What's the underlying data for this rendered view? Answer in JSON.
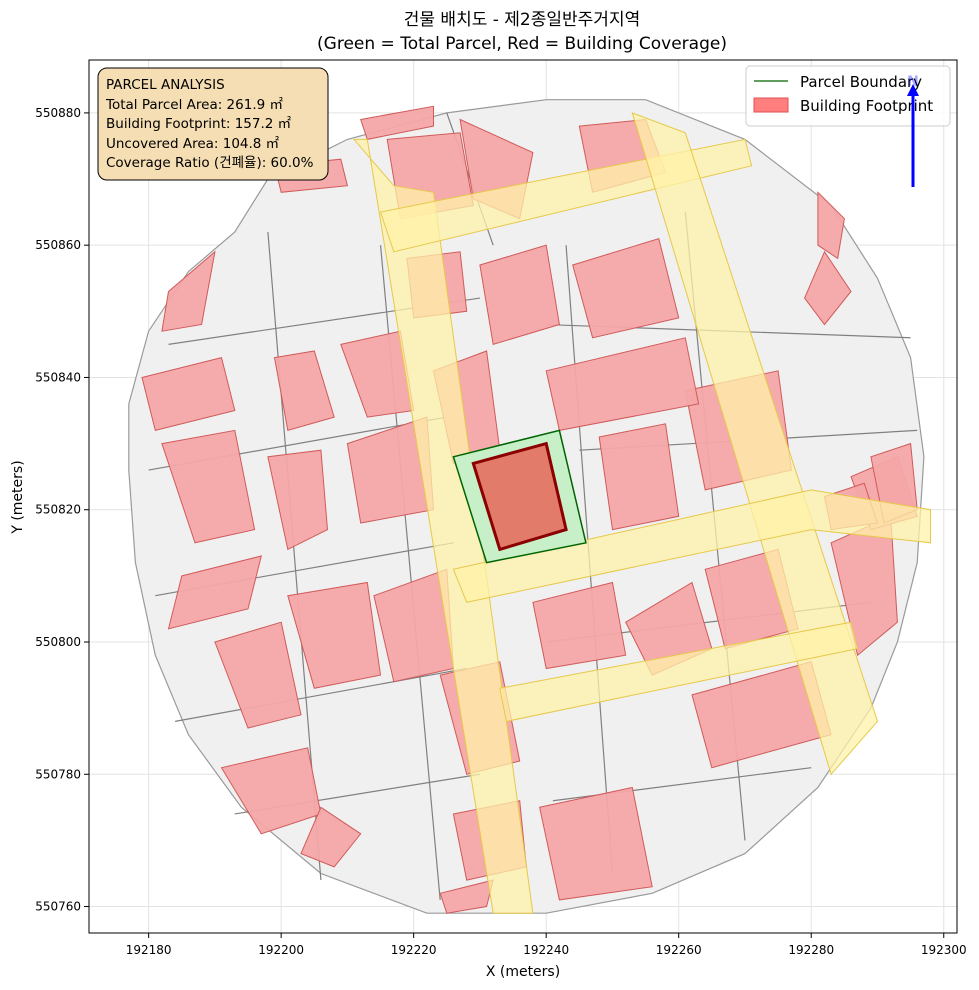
{
  "chart_data": {
    "type": "map",
    "title": "건물 배치도 - 제2종일반주거지역",
    "subtitle": "(Green = Total Parcel, Red = Building Coverage)",
    "xlabel": "X (meters)",
    "ylabel": "Y (meters)",
    "xlim": [
      192171,
      192302
    ],
    "ylim": [
      550756,
      550888
    ],
    "xticks": [
      192180,
      192200,
      192220,
      192240,
      192260,
      192280,
      192300
    ],
    "yticks": [
      550760,
      550780,
      550800,
      550820,
      550840,
      550860,
      550880
    ],
    "grid": true,
    "legend": {
      "placement": "top-right",
      "entries": [
        {
          "label": "Parcel Boundary",
          "kind": "line",
          "color": "#006400"
        },
        {
          "label": "Building Footprint",
          "kind": "patch",
          "color": "#ff7f7f"
        }
      ]
    },
    "north_arrow": {
      "label": "N",
      "color": "#0000ff"
    },
    "annotation": {
      "lines": [
        "PARCEL ANALYSIS",
        "Total Parcel Area: 261.9 ㎡",
        "Building Footprint: 157.2 ㎡",
        "Uncovered Area: 104.8 ㎡",
        "Coverage Ratio (건폐율): 60.0%"
      ]
    },
    "values": {
      "total_parcel_area_m2": 261.9,
      "building_footprint_m2": 157.2,
      "uncovered_area_m2": 104.8,
      "coverage_ratio_pct": 60.0
    },
    "colors": {
      "area_fill": "#f0f0f0",
      "lot_line": "#808080",
      "road_fill": "#fff2a8",
      "road_edge": "#e6c84a",
      "building_fill": "#f4a6a6",
      "building_edge": "#d05a5a",
      "target_parcel_fill": "#c8f0c8",
      "target_parcel_edge": "#006400",
      "target_building_fill": "#e27b6a",
      "target_building_edge": "#8b0000"
    },
    "boundary": [
      [
        192177,
        550826
      ],
      [
        192177,
        550836
      ],
      [
        192180,
        550847
      ],
      [
        192186,
        550856
      ],
      [
        192193,
        550862
      ],
      [
        192198,
        550870
      ],
      [
        192210,
        550876
      ],
      [
        192225,
        550880
      ],
      [
        192240,
        550882
      ],
      [
        192255,
        550882
      ],
      [
        192270,
        550876
      ],
      [
        192283,
        550866
      ],
      [
        192290,
        550855
      ],
      [
        192295,
        550843
      ],
      [
        192297,
        550828
      ],
      [
        192296,
        550812
      ],
      [
        192293,
        550800
      ],
      [
        192289,
        550790
      ],
      [
        192281,
        550778
      ],
      [
        192270,
        550768
      ],
      [
        192256,
        550762
      ],
      [
        192240,
        550759
      ],
      [
        192222,
        550759
      ],
      [
        192206,
        550765
      ],
      [
        192194,
        550775
      ],
      [
        192186,
        550786
      ],
      [
        192181,
        550798
      ],
      [
        192178,
        550812
      ]
    ],
    "roads": [
      [
        [
          192211,
          550876
        ],
        [
          192213,
          550876
        ],
        [
          192232,
          550759
        ],
        [
          192238,
          550759
        ],
        [
          192223,
          550868
        ],
        [
          192217,
          550869
        ]
      ],
      [
        [
          192215,
          550865
        ],
        [
          192270,
          550876
        ],
        [
          192271,
          550872
        ],
        [
          192217,
          550859
        ]
      ],
      [
        [
          192253,
          550880
        ],
        [
          192261,
          550877
        ],
        [
          192290,
          550788
        ],
        [
          192283,
          550780
        ]
      ],
      [
        [
          192226,
          550811
        ],
        [
          192280,
          550823
        ],
        [
          192298,
          550820
        ],
        [
          192298,
          550815
        ],
        [
          192280,
          550817
        ],
        [
          192228,
          550806
        ]
      ],
      [
        [
          192233,
          550793
        ],
        [
          192286,
          550803
        ],
        [
          192287,
          550799
        ],
        [
          192234,
          550788
        ]
      ]
    ],
    "lot_lines": [
      [
        [
          192183,
          550845
        ],
        [
          192230,
          550852
        ]
      ],
      [
        [
          192180,
          550826
        ],
        [
          192225,
          550834
        ]
      ],
      [
        [
          192181,
          550807
        ],
        [
          192226,
          550815
        ]
      ],
      [
        [
          192184,
          550788
        ],
        [
          192228,
          550796
        ]
      ],
      [
        [
          192193,
          550774
        ],
        [
          192230,
          550780
        ]
      ],
      [
        [
          192240,
          550848
        ],
        [
          192295,
          550846
        ]
      ],
      [
        [
          192245,
          550829
        ],
        [
          192296,
          550832
        ]
      ],
      [
        [
          192240,
          550800
        ],
        [
          192289,
          550806
        ]
      ],
      [
        [
          192241,
          550776
        ],
        [
          192280,
          550781
        ]
      ],
      [
        [
          192198,
          550862
        ],
        [
          192206,
          550764
        ]
      ],
      [
        [
          192215,
          550860
        ],
        [
          192224,
          550761
        ]
      ],
      [
        [
          192243,
          550860
        ],
        [
          192250,
          550765
        ]
      ],
      [
        [
          192261,
          550865
        ],
        [
          192270,
          550770
        ]
      ],
      [
        [
          192225,
          550880
        ],
        [
          192232,
          550860
        ]
      ]
    ],
    "buildings": [
      [
        [
          192179,
          550840
        ],
        [
          192191,
          550843
        ],
        [
          192193,
          550835
        ],
        [
          192181,
          550832
        ]
      ],
      [
        [
          192183,
          550853
        ],
        [
          192190,
          550859
        ],
        [
          192188,
          550848
        ],
        [
          192182,
          550847
        ]
      ],
      [
        [
          192199,
          550843
        ],
        [
          192205,
          550844
        ],
        [
          192208,
          550834
        ],
        [
          192201,
          550832
        ]
      ],
      [
        [
          192209,
          550845
        ],
        [
          192218,
          550847
        ],
        [
          192220,
          550835
        ],
        [
          192213,
          550834
        ]
      ],
      [
        [
          192185,
          550810
        ],
        [
          192197,
          550813
        ],
        [
          192195,
          550805
        ],
        [
          192183,
          550802
        ]
      ],
      [
        [
          192182,
          550830
        ],
        [
          192193,
          550832
        ],
        [
          192196,
          550817
        ],
        [
          192187,
          550815
        ]
      ],
      [
        [
          192198,
          550828
        ],
        [
          192206,
          550829
        ],
        [
          192207,
          550817
        ],
        [
          192201,
          550814
        ]
      ],
      [
        [
          192210,
          550830
        ],
        [
          192222,
          550834
        ],
        [
          192223,
          550820
        ],
        [
          192212,
          550818
        ]
      ],
      [
        [
          192214,
          550807
        ],
        [
          192225,
          550811
        ],
        [
          192226,
          550796
        ],
        [
          192217,
          550794
        ]
      ],
      [
        [
          192201,
          550807
        ],
        [
          192213,
          550809
        ],
        [
          192215,
          550795
        ],
        [
          192205,
          550793
        ]
      ],
      [
        [
          192190,
          550800
        ],
        [
          192200,
          550803
        ],
        [
          192203,
          550789
        ],
        [
          192195,
          550787
        ]
      ],
      [
        [
          192191,
          550781
        ],
        [
          192204,
          550784
        ],
        [
          192206,
          550774
        ],
        [
          192197,
          550771
        ]
      ],
      [
        [
          192224,
          550795
        ],
        [
          192233,
          550797
        ],
        [
          192236,
          550782
        ],
        [
          192228,
          550780
        ]
      ],
      [
        [
          192226,
          550774
        ],
        [
          192236,
          550776
        ],
        [
          192237,
          550766
        ],
        [
          192228,
          550764
        ]
      ],
      [
        [
          192239,
          550775
        ],
        [
          192253,
          550778
        ],
        [
          192256,
          550763
        ],
        [
          192242,
          550761
        ]
      ],
      [
        [
          192238,
          550806
        ],
        [
          192250,
          550809
        ],
        [
          192252,
          550798
        ],
        [
          192240,
          550796
        ]
      ],
      [
        [
          192252,
          550803
        ],
        [
          192262,
          550809
        ],
        [
          192265,
          550799
        ],
        [
          192256,
          550795
        ]
      ],
      [
        [
          192264,
          550811
        ],
        [
          192275,
          550814
        ],
        [
          192278,
          550802
        ],
        [
          192267,
          550799
        ]
      ],
      [
        [
          192262,
          550792
        ],
        [
          192280,
          550797
        ],
        [
          192283,
          550786
        ],
        [
          192265,
          550781
        ]
      ],
      [
        [
          192283,
          550815
        ],
        [
          192292,
          550819
        ],
        [
          192293,
          550803
        ],
        [
          192287,
          550798
        ]
      ],
      [
        [
          192223,
          550841
        ],
        [
          192231,
          550844
        ],
        [
          192233,
          550829
        ],
        [
          192226,
          550827
        ]
      ],
      [
        [
          192248,
          550831
        ],
        [
          192258,
          550833
        ],
        [
          192260,
          550819
        ],
        [
          192250,
          550817
        ]
      ],
      [
        [
          192261,
          550838
        ],
        [
          192275,
          550841
        ],
        [
          192277,
          550826
        ],
        [
          192264,
          550823
        ]
      ],
      [
        [
          192240,
          550841
        ],
        [
          192261,
          550846
        ],
        [
          192263,
          550836
        ],
        [
          192242,
          550832
        ]
      ],
      [
        [
          192244,
          550857
        ],
        [
          192257,
          550861
        ],
        [
          192260,
          550849
        ],
        [
          192247,
          550846
        ]
      ],
      [
        [
          192230,
          550857
        ],
        [
          192240,
          550860
        ],
        [
          192242,
          550848
        ],
        [
          192232,
          550845
        ]
      ],
      [
        [
          192219,
          550858
        ],
        [
          192227,
          550859
        ],
        [
          192228,
          550850
        ],
        [
          192220,
          550849
        ]
      ],
      [
        [
          192227,
          550879
        ],
        [
          192238,
          550874
        ],
        [
          192236,
          550864
        ],
        [
          192229,
          550867
        ]
      ],
      [
        [
          192245,
          550878
        ],
        [
          192255,
          550879
        ],
        [
          192258,
          550871
        ],
        [
          192247,
          550868
        ]
      ],
      [
        [
          192216,
          550876
        ],
        [
          192227,
          550877
        ],
        [
          192229,
          550866
        ],
        [
          192218,
          550864
        ]
      ],
      [
        [
          192282,
          550859
        ],
        [
          192286,
          550853
        ],
        [
          192282,
          550848
        ],
        [
          192279,
          550852
        ]
      ],
      [
        [
          192286,
          550825
        ],
        [
          192293,
          550828
        ],
        [
          192296,
          550819
        ],
        [
          192289,
          550817
        ]
      ],
      [
        [
          192212,
          550879
        ],
        [
          192223,
          550881
        ],
        [
          192223,
          550878
        ],
        [
          192213,
          550876
        ]
      ],
      [
        [
          192199,
          550872
        ],
        [
          192209,
          550873
        ],
        [
          192210,
          550869
        ],
        [
          192200,
          550868
        ]
      ],
      [
        [
          192282,
          550822
        ],
        [
          192288,
          550824
        ],
        [
          192290,
          550818
        ],
        [
          192283,
          550817
        ]
      ],
      [
        [
          192289,
          550828
        ],
        [
          192295,
          550830
        ],
        [
          192296,
          550820
        ],
        [
          192291,
          550818
        ]
      ],
      [
        [
          192281,
          550868
        ],
        [
          192285,
          550864
        ],
        [
          192284,
          550858
        ],
        [
          192281,
          550860
        ]
      ],
      [
        [
          192206,
          550775
        ],
        [
          192212,
          550771
        ],
        [
          192208,
          550766
        ],
        [
          192203,
          550768
        ]
      ],
      [
        [
          192224,
          550762
        ],
        [
          192232,
          550764
        ],
        [
          192231,
          550760
        ],
        [
          192225,
          550759
        ]
      ]
    ],
    "target_parcel": [
      [
        192226,
        550828
      ],
      [
        192242,
        550832
      ],
      [
        192246,
        550815
      ],
      [
        192231,
        550812
      ]
    ],
    "target_building": [
      [
        192229,
        550827
      ],
      [
        192240,
        550830
      ],
      [
        192243,
        550817
      ],
      [
        192233,
        550814
      ]
    ]
  }
}
